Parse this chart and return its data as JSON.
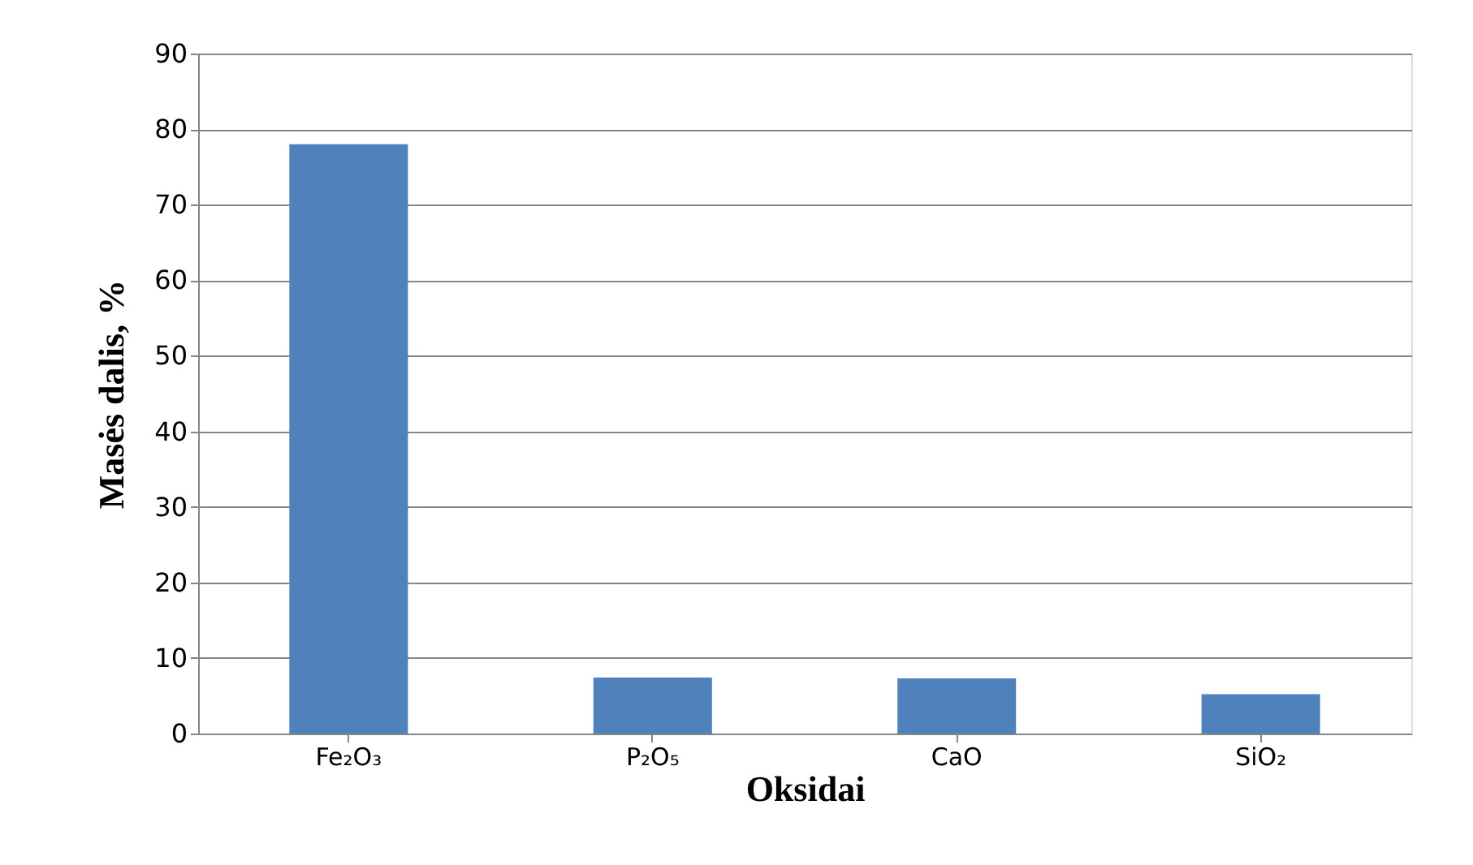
{
  "chart_data": {
    "type": "bar",
    "xlabel": "Oksidai",
    "ylabel": "Masės dalis, %",
    "categories": [
      "Fe₂O₃",
      "P₂O₅",
      "CaO",
      "SiO₂"
    ],
    "values": [
      78,
      7.4,
      7.3,
      5.2
    ],
    "color": "#4f81bd",
    "ylim": [
      0,
      90
    ],
    "yticks": [
      0,
      10,
      20,
      30,
      40,
      50,
      60,
      70,
      80,
      90
    ],
    "grid": "y"
  }
}
